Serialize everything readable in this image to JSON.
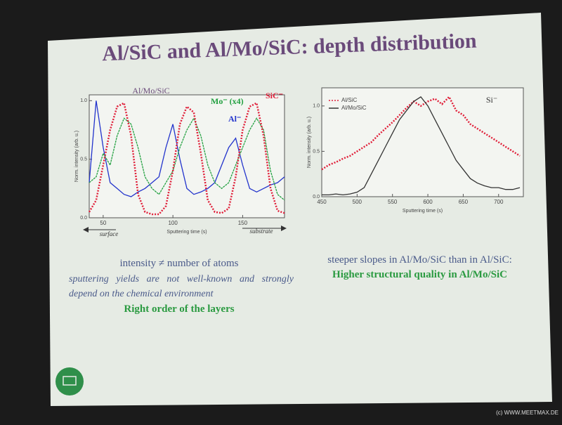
{
  "slide": {
    "title": "Al/SiC and Al/Mo/SiC: depth distribution",
    "left_text": [
      "intensity ≠ number of atoms",
      "sputtering yields are not well-known and strongly depend on the chemical environment",
      "Right order of the layers"
    ],
    "right_text": [
      "steeper slopes in Al/Mo/SiC than in Al/SiC:",
      "Higher structural quality in Al/Mo/SiC"
    ],
    "footer": "(c) WWW.MEETMAX.DE"
  },
  "chart_data": [
    {
      "type": "line",
      "annotations": [
        "Al/Mo/SiC",
        "surface",
        "substrate"
      ],
      "x_label": "Sputtering time (s)",
      "y_label": "Norm. intensity (arb. u.)",
      "legend": "inline",
      "xlim": [
        40,
        180
      ],
      "xticks": [
        50,
        100,
        150
      ],
      "ylim": [
        0,
        1.05
      ],
      "yticks": [
        {
          "value": 0,
          "label": "0.0"
        },
        0.5,
        {
          "value": 1,
          "label": "1.0"
        }
      ],
      "x": [
        40,
        45,
        50,
        55,
        60,
        65,
        70,
        75,
        80,
        85,
        90,
        95,
        100,
        105,
        110,
        115,
        120,
        125,
        130,
        135,
        140,
        145,
        150,
        155,
        160,
        165,
        170,
        175,
        180
      ],
      "series": [
        {
          "name": "Al⁻",
          "color": "#2233cc",
          "values": [
            0.3,
            1.0,
            0.6,
            0.3,
            0.25,
            0.2,
            0.18,
            0.22,
            0.25,
            0.3,
            0.35,
            0.6,
            0.8,
            0.5,
            0.25,
            0.2,
            0.22,
            0.25,
            0.3,
            0.45,
            0.6,
            0.68,
            0.45,
            0.25,
            0.22,
            0.25,
            0.28,
            0.3,
            0.35
          ]
        },
        {
          "name": "Mo⁻ (x4)",
          "color": "#22a040",
          "values": [
            0.3,
            0.35,
            0.55,
            0.45,
            0.7,
            0.85,
            0.8,
            0.6,
            0.35,
            0.25,
            0.2,
            0.3,
            0.4,
            0.6,
            0.75,
            0.85,
            0.7,
            0.45,
            0.3,
            0.25,
            0.3,
            0.45,
            0.6,
            0.75,
            0.85,
            0.75,
            0.4,
            0.2,
            0.15
          ]
        },
        {
          "name": "SiC⁻",
          "color": "#e0203a",
          "values": [
            0.05,
            0.15,
            0.45,
            0.75,
            0.95,
            0.98,
            0.7,
            0.2,
            0.05,
            0.03,
            0.03,
            0.1,
            0.4,
            0.8,
            0.95,
            0.9,
            0.55,
            0.15,
            0.05,
            0.04,
            0.08,
            0.35,
            0.75,
            0.95,
            0.98,
            0.7,
            0.25,
            0.06,
            0.04
          ]
        }
      ]
    },
    {
      "type": "line",
      "annotations": [
        "Si⁻"
      ],
      "x_label": "Sputtering time (s)",
      "y_label": "Norm. intensity (arb. u.)",
      "legend": "upper left",
      "xlim": [
        450,
        735
      ],
      "xticks": [
        450,
        500,
        550,
        600,
        650,
        700
      ],
      "ylim": [
        0,
        1.2
      ],
      "yticks": [
        {
          "value": 0,
          "label": "0.0"
        },
        0.5,
        {
          "value": 1,
          "label": "1.0"
        }
      ],
      "x": [
        450,
        460,
        470,
        480,
        490,
        500,
        510,
        520,
        530,
        540,
        550,
        560,
        570,
        580,
        590,
        600,
        610,
        620,
        630,
        640,
        650,
        660,
        670,
        680,
        690,
        700,
        710,
        720,
        730
      ],
      "series": [
        {
          "name": "Al/SiC",
          "color": "#e0203a",
          "values": [
            0.3,
            0.35,
            0.38,
            0.42,
            0.45,
            0.5,
            0.55,
            0.6,
            0.68,
            0.75,
            0.82,
            0.9,
            0.98,
            1.05,
            1.0,
            1.05,
            1.08,
            1.02,
            1.1,
            0.95,
            0.9,
            0.8,
            0.75,
            0.7,
            0.65,
            0.6,
            0.55,
            0.5,
            0.45
          ]
        },
        {
          "name": "Al/Mo/SiC",
          "color": "#333333",
          "values": [
            0.02,
            0.02,
            0.03,
            0.02,
            0.03,
            0.05,
            0.1,
            0.25,
            0.4,
            0.55,
            0.7,
            0.85,
            0.95,
            1.05,
            1.1,
            1.0,
            0.85,
            0.7,
            0.55,
            0.4,
            0.3,
            0.2,
            0.15,
            0.12,
            0.1,
            0.1,
            0.08,
            0.08,
            0.1
          ]
        }
      ]
    }
  ]
}
